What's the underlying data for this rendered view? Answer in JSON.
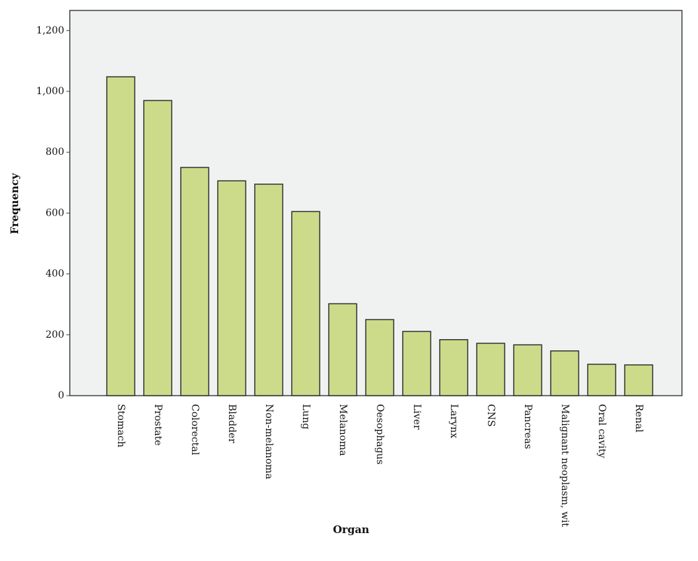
{
  "chart_data": {
    "type": "bar",
    "x_label": "Organ",
    "y_label": "Frequency",
    "categories": [
      "Stomach",
      "Prostate",
      "Colorectal",
      "Bladder",
      "Non-melanoma",
      "Lung",
      "Melanoma",
      "Oesophagus",
      "Liver",
      "Larynx",
      "CNS",
      "Pancreas",
      "Malignant neoplasm, wit",
      "Oral cavity",
      "Renal"
    ],
    "values": [
      1048,
      970,
      750,
      706,
      695,
      605,
      302,
      250,
      211,
      184,
      172,
      167,
      147,
      103,
      101
    ],
    "color": "#ccdb8a",
    "ylim": [
      0,
      1266
    ],
    "yticks": [
      0,
      200,
      400,
      600,
      800,
      {
        "value": 1000,
        "label": "1,000"
      },
      {
        "value": 1200,
        "label": "1,200"
      }
    ]
  }
}
